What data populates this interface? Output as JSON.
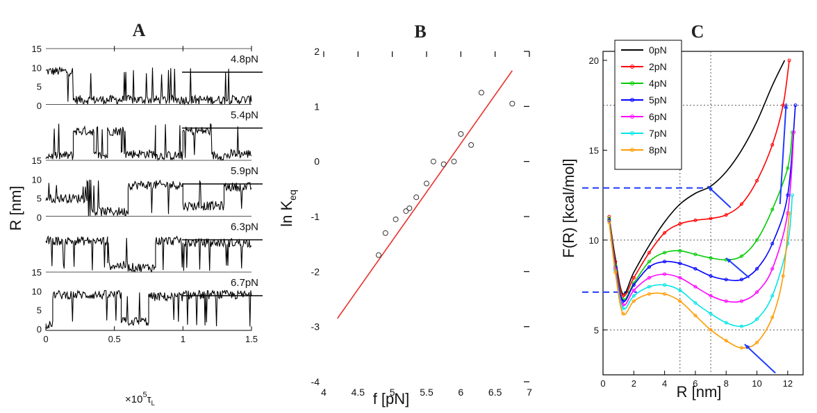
{
  "chart_data": [
    {
      "panel": "A",
      "type": "line",
      "title": "A",
      "ylabel": "R [nm]",
      "xlabel_main": "×10",
      "xlabel_exp": "5",
      "xlabel_sym": "τ",
      "xlabel_sub": "L",
      "xlim": [
        0,
        1.5
      ],
      "xticks": [
        "0",
        "0.5",
        "1",
        "1.5"
      ],
      "ylim": [
        0,
        15
      ],
      "yticks": [
        "0",
        "5",
        "10",
        "15"
      ],
      "series": [
        {
          "name": "4.8pN",
          "values_desc": "mostly folded",
          "segments": [
            [
              0,
              0.2,
              9
            ],
            [
              0.2,
              1.5,
              1.5
            ]
          ]
        },
        {
          "name": "5.4pN",
          "segments": [
            [
              0,
              0.2,
              1.5
            ],
            [
              0.2,
              0.35,
              8
            ],
            [
              0.35,
              0.45,
              1.5
            ],
            [
              0.45,
              0.55,
              8
            ],
            [
              0.55,
              0.8,
              2
            ],
            [
              0.8,
              1.0,
              1.5
            ],
            [
              1.0,
              1.2,
              8
            ],
            [
              1.2,
              1.35,
              1.5
            ],
            [
              1.35,
              1.5,
              2
            ]
          ]
        },
        {
          "name": "5.9pN",
          "segments": [
            [
              0,
              0.3,
              5
            ],
            [
              0.3,
              0.6,
              1.5
            ],
            [
              0.6,
              1.0,
              8.5
            ],
            [
              1.0,
              1.3,
              3
            ],
            [
              1.3,
              1.5,
              8
            ]
          ]
        },
        {
          "name": "6.3pN",
          "segments": [
            [
              0,
              0.15,
              8.5
            ],
            [
              0.15,
              0.45,
              8.5
            ],
            [
              0.45,
              0.6,
              2
            ],
            [
              0.6,
              0.8,
              1.5
            ],
            [
              0.8,
              1.0,
              8.5
            ],
            [
              1.0,
              1.5,
              8
            ]
          ]
        },
        {
          "name": "6.7pN",
          "segments": [
            [
              0,
              0.05,
              1
            ],
            [
              0.05,
              0.55,
              9
            ],
            [
              0.55,
              0.75,
              2
            ],
            [
              0.75,
              1.0,
              8.5
            ],
            [
              1.0,
              1.5,
              9
            ]
          ]
        }
      ]
    },
    {
      "panel": "B",
      "type": "scatter",
      "title": "B",
      "xlabel": "f [pN]",
      "ylabel_main": "ln K",
      "ylabel_sub": "eq",
      "xlim": [
        4,
        7
      ],
      "ylim": [
        -4,
        2
      ],
      "xticks": [
        "4",
        "4.5",
        "5",
        "5.5",
        "6",
        "6.5",
        "7"
      ],
      "yticks": [
        "-4",
        "-3",
        "-2",
        "-1",
        "0",
        "1",
        "2"
      ],
      "points": [
        [
          4.8,
          -1.7
        ],
        [
          4.9,
          -1.3
        ],
        [
          5.05,
          -1.05
        ],
        [
          5.2,
          -0.9
        ],
        [
          5.25,
          -0.85
        ],
        [
          5.35,
          -0.65
        ],
        [
          5.5,
          -0.4
        ],
        [
          5.6,
          0.0
        ],
        [
          5.75,
          -0.05
        ],
        [
          5.9,
          0.0
        ],
        [
          6.0,
          0.5
        ],
        [
          6.15,
          0.3
        ],
        [
          6.3,
          1.25
        ],
        [
          6.75,
          1.05
        ]
      ],
      "fit_line": [
        [
          4.2,
          -2.85
        ],
        [
          6.75,
          1.65
        ]
      ],
      "line_color": "#e8302a"
    },
    {
      "panel": "C",
      "type": "line",
      "title": "C",
      "xlabel": "R [nm]",
      "ylabel": "F(R) [kcal/mol]",
      "xlim": [
        0,
        13
      ],
      "ylim": [
        2.5,
        20.5
      ],
      "xticks": [
        "0",
        "2",
        "4",
        "6",
        "8",
        "10",
        "12"
      ],
      "yticks": [
        "5",
        "10",
        "15",
        "20"
      ],
      "series": [
        {
          "name": "0pN",
          "color": "#000000",
          "points": [
            [
              0.4,
              11.3
            ],
            [
              0.8,
              9
            ],
            [
              1.3,
              7
            ],
            [
              2,
              8.2
            ],
            [
              3,
              9.7
            ],
            [
              4,
              11
            ],
            [
              5,
              12
            ],
            [
              6,
              12.6
            ],
            [
              7,
              13
            ],
            [
              8,
              13.8
            ],
            [
              9,
              15
            ],
            [
              10,
              16.6
            ],
            [
              11,
              18.6
            ],
            [
              11.8,
              20
            ]
          ]
        },
        {
          "name": "2pN",
          "color": "#ff0000",
          "points": [
            [
              0.4,
              11.3
            ],
            [
              0.8,
              8.8
            ],
            [
              1.3,
              6.9
            ],
            [
              2,
              7.9
            ],
            [
              3,
              9.3
            ],
            [
              4,
              10.4
            ],
            [
              5,
              10.9
            ],
            [
              6,
              11.1
            ],
            [
              7,
              11.2
            ],
            [
              8,
              11.4
            ],
            [
              9,
              12
            ],
            [
              10,
              13.3
            ],
            [
              11,
              15.3
            ],
            [
              11.7,
              17.5
            ],
            [
              12.1,
              20
            ]
          ]
        },
        {
          "name": "4pN",
          "color": "#00cc00",
          "points": [
            [
              0.4,
              11.2
            ],
            [
              0.8,
              8.6
            ],
            [
              1.3,
              6.7
            ],
            [
              2,
              7.6
            ],
            [
              3,
              8.8
            ],
            [
              4,
              9.3
            ],
            [
              5,
              9.4
            ],
            [
              6,
              9.2
            ],
            [
              7,
              9
            ],
            [
              8,
              8.9
            ],
            [
              9,
              9.1
            ],
            [
              10,
              10
            ],
            [
              11,
              11.7
            ],
            [
              12,
              14
            ],
            [
              12.3,
              16
            ]
          ]
        },
        {
          "name": "5pN",
          "color": "#0000ff",
          "points": [
            [
              0.4,
              11.1
            ],
            [
              0.8,
              8.5
            ],
            [
              1.3,
              6.6
            ],
            [
              2,
              7.5
            ],
            [
              3,
              8.5
            ],
            [
              4,
              8.8
            ],
            [
              5,
              8.7
            ],
            [
              6,
              8.4
            ],
            [
              7,
              8
            ],
            [
              8,
              7.8
            ],
            [
              9,
              7.8
            ],
            [
              10,
              8.4
            ],
            [
              11,
              9.8
            ],
            [
              12,
              12.5
            ],
            [
              12.5,
              17.5
            ]
          ]
        },
        {
          "name": "6pN",
          "color": "#ff00ff",
          "points": [
            [
              0.4,
              11
            ],
            [
              0.8,
              8.4
            ],
            [
              1.3,
              6.4
            ],
            [
              2,
              7.2
            ],
            [
              3,
              7.9
            ],
            [
              4,
              8.1
            ],
            [
              5,
              7.9
            ],
            [
              6,
              7.4
            ],
            [
              7,
              6.9
            ],
            [
              8,
              6.6
            ],
            [
              9,
              6.6
            ],
            [
              10,
              7.1
            ],
            [
              11,
              8.4
            ],
            [
              12,
              11.5
            ],
            [
              12.4,
              16
            ]
          ]
        },
        {
          "name": "7pN",
          "color": "#00e5e5",
          "points": [
            [
              0.4,
              11
            ],
            [
              0.8,
              8.3
            ],
            [
              1.3,
              6.2
            ],
            [
              2,
              6.9
            ],
            [
              3,
              7.4
            ],
            [
              4,
              7.5
            ],
            [
              5,
              7.2
            ],
            [
              6,
              6.5
            ],
            [
              7,
              5.9
            ],
            [
              8,
              5.4
            ],
            [
              9,
              5.2
            ],
            [
              10,
              5.6
            ],
            [
              11,
              6.9
            ],
            [
              12,
              9.8
            ],
            [
              12.3,
              12.5
            ]
          ]
        },
        {
          "name": "8pN",
          "color": "#ff9900",
          "points": [
            [
              0.4,
              11
            ],
            [
              0.8,
              8.2
            ],
            [
              1.3,
              5.9
            ],
            [
              2,
              6.6
            ],
            [
              3,
              7
            ],
            [
              4,
              7
            ],
            [
              5,
              6.6
            ],
            [
              6,
              5.8
            ],
            [
              7,
              5
            ],
            [
              8,
              4.4
            ],
            [
              9,
              4
            ],
            [
              10,
              4.3
            ],
            [
              11,
              5.7
            ],
            [
              11.7,
              8
            ],
            [
              12.1,
              11.5
            ]
          ]
        }
      ],
      "dashed_levels": [
        12.9,
        7.1
      ]
    }
  ]
}
